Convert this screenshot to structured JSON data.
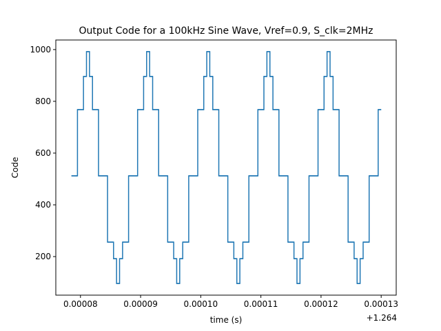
{
  "chart_data": {
    "type": "step",
    "title": "Output Code for a 100kHz Sine Wave, Vref=0.9, S_clk=2MHz",
    "x_label": "time (s)",
    "y_label": "Code",
    "x_offset_label": "+1.264",
    "color": "#1f77b4",
    "xlim": [
      7.59e-05,
      0.0001325
    ],
    "ylim": [
      51,
      1037
    ],
    "xticks": [
      8e-05,
      9e-05,
      {
        "value": 0.0001,
        "label": "0.00010"
      },
      0.00011,
      0.00012,
      0.00013
    ],
    "yticks": [
      200,
      400,
      600,
      800,
      1000
    ],
    "x": [
      7.85e-05,
      7.9e-05,
      7.95e-05,
      8e-05,
      8.05e-05,
      8.1e-05,
      8.15e-05,
      8.2e-05,
      8.25e-05,
      8.3e-05,
      8.35e-05,
      8.4e-05,
      8.45e-05,
      8.5e-05,
      8.55e-05,
      8.6e-05,
      8.65e-05,
      8.7e-05,
      8.75e-05,
      8.8e-05,
      8.85e-05,
      8.9e-05,
      8.95e-05,
      9e-05,
      9.05e-05,
      9.1e-05,
      9.15e-05,
      9.2e-05,
      9.25e-05,
      9.3e-05,
      9.35e-05,
      9.4e-05,
      9.45e-05,
      9.5e-05,
      9.55e-05,
      9.6e-05,
      9.65e-05,
      9.7e-05,
      9.75e-05,
      9.8e-05,
      9.85e-05,
      9.9e-05,
      9.95e-05,
      0.0001,
      0.0001005,
      0.000101,
      0.0001015,
      0.000102,
      0.0001025,
      0.000103,
      0.0001035,
      0.000104,
      0.0001045,
      0.000105,
      0.0001055,
      0.000106,
      0.0001065,
      0.000107,
      0.0001075,
      0.000108,
      0.0001085,
      0.000109,
      0.0001095,
      0.00011,
      0.0001105,
      0.000111,
      0.0001115,
      0.000112,
      0.0001125,
      0.000113,
      0.0001135,
      0.000114,
      0.0001145,
      0.000115,
      0.0001155,
      0.000116,
      0.0001165,
      0.000117,
      0.0001175,
      0.000118,
      0.0001185,
      0.000119,
      0.0001195,
      0.00012,
      0.0001205,
      0.000121,
      0.0001215,
      0.000122,
      0.0001225,
      0.000123,
      0.0001235,
      0.000124,
      0.0001245,
      0.000125,
      0.0001255,
      0.000126,
      0.0001265,
      0.000127,
      0.0001275,
      0.000128,
      0.0001285,
      0.000129,
      0.0001295,
      0.00013
    ],
    "values": [
      512,
      512,
      768,
      768,
      896,
      992,
      896,
      768,
      768,
      512,
      512,
      512,
      256,
      256,
      192,
      96,
      192,
      256,
      256,
      512,
      512,
      512,
      768,
      768,
      896,
      992,
      896,
      768,
      768,
      512,
      512,
      512,
      256,
      256,
      192,
      96,
      192,
      256,
      256,
      512,
      512,
      512,
      768,
      768,
      896,
      992,
      896,
      768,
      768,
      512,
      512,
      512,
      256,
      256,
      192,
      96,
      192,
      256,
      256,
      512,
      512,
      512,
      768,
      768,
      896,
      992,
      896,
      768,
      768,
      512,
      512,
      512,
      256,
      256,
      192,
      96,
      192,
      256,
      256,
      512,
      512,
      512,
      768,
      768,
      896,
      992,
      896,
      768,
      768,
      512,
      512,
      512,
      256,
      256,
      192,
      96,
      192,
      256,
      256,
      512,
      512,
      512,
      768,
      768
    ]
  }
}
